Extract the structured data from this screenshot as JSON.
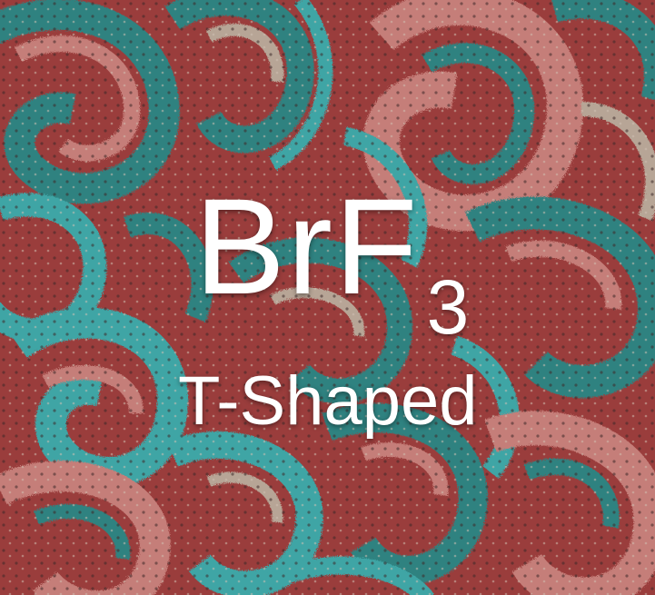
{
  "card": {
    "formula_main": "BrF",
    "formula_subscript": "3",
    "geometry_label": "T-Shaped"
  },
  "colors": {
    "background_red": "#a8403f",
    "teal": "#2f8f8c",
    "cyan": "#3fb7b7",
    "pink": "#d98a84",
    "beige": "#c9b7a6",
    "dark": "#3d2a2a",
    "text": "#ffffff"
  },
  "background": {
    "pattern": "paisley-textile"
  }
}
